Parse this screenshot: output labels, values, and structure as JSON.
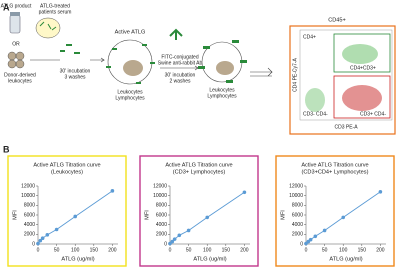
{
  "panel_a": {
    "label": "A",
    "atlg_product": "ATLG product",
    "serum": [
      "ATLG-treated",
      "patients serum"
    ],
    "or": "OR",
    "leukocytes": [
      "Donor-derived",
      "leukocytes"
    ],
    "step1": [
      "30' incubation",
      "3 washes"
    ],
    "active_atlg": "Active ATLG",
    "cells1": [
      "Leukocytes",
      "Lymphocytes"
    ],
    "antibody": [
      "FITC-conjugated",
      "Swine anti-rabbit Ab"
    ],
    "step2": [
      "30' incubation",
      "2 washes"
    ],
    "cells2": [
      "Leukocytes",
      "Lymphocytes"
    ],
    "flow": {
      "gate": "CD45+",
      "y_label": "CD4 PE-Cy7-A",
      "x_label": "CD3 PE-A",
      "quadrants": [
        "CD4+",
        "CD4+CD3+",
        "CD3- CD4-",
        "CD3+ CD4-"
      ]
    }
  },
  "panel_b": {
    "label": "B"
  },
  "chart_data": [
    {
      "type": "line",
      "title": [
        "Active ATLG Titration curve",
        "(Leukocytes)"
      ],
      "x_label": "ATLG (ug/ml)",
      "y_label": "MFI",
      "x": [
        0,
        6.25,
        12.5,
        25,
        50,
        100,
        200
      ],
      "values": [
        100,
        700,
        1200,
        1900,
        3000,
        5700,
        11000
      ],
      "color": "#5b9bd5",
      "frame_color": "#f3e21c",
      "xlim": [
        0,
        215
      ],
      "xticks": [
        0,
        50,
        100,
        150,
        200
      ],
      "ylim": [
        0,
        12000
      ],
      "yticks": [
        0,
        2000,
        4000,
        6000,
        8000,
        10000,
        12000
      ]
    },
    {
      "type": "line",
      "title": [
        "Active ATLG Titration curve",
        "(CD3+ Lymphocytes)"
      ],
      "x_label": "ATLG (ug/ml)",
      "y_label": "MFI",
      "x": [
        0,
        6.25,
        12.5,
        25,
        50,
        100,
        200
      ],
      "values": [
        100,
        500,
        1000,
        1800,
        2800,
        5500,
        10700
      ],
      "color": "#5b9bd5",
      "frame_color": "#c2378b",
      "xlim": [
        0,
        215
      ],
      "xticks": [
        0,
        50,
        100,
        150,
        200
      ],
      "ylim": [
        0,
        12000
      ],
      "yticks": [
        0,
        2000,
        4000,
        6000,
        8000,
        10000,
        12000
      ]
    },
    {
      "type": "line",
      "title": [
        "Active ATLG Titration curve",
        "(CD3+CD4+ Lymphocytes)"
      ],
      "x_label": "ATLG (ug/ml)",
      "y_label": "MFI",
      "x": [
        0,
        6.25,
        12.5,
        25,
        50,
        100,
        200
      ],
      "values": [
        100,
        500,
        900,
        1600,
        2800,
        5500,
        10800
      ],
      "color": "#5b9bd5",
      "frame_color": "#f0891c",
      "xlim": [
        0,
        215
      ],
      "xticks": [
        0,
        50,
        100,
        150,
        200
      ],
      "ylim": [
        0,
        12000
      ],
      "yticks": [
        0,
        2000,
        4000,
        6000,
        8000,
        10000,
        12000
      ]
    }
  ]
}
